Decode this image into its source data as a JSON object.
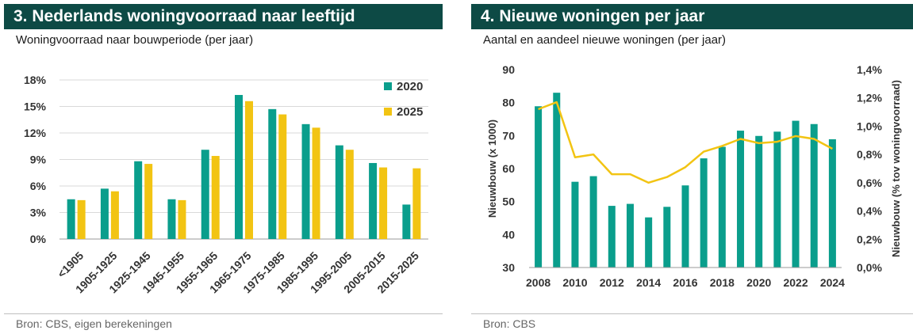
{
  "colors": {
    "header_bg": "#0d4a45",
    "teal": "#0a9e8c",
    "yellow": "#f2c413"
  },
  "left": {
    "header": "3.  Nederlands woningvoorraad naar leeftijd",
    "subtitle": "Woningvoorraad naar bouwperiode (per jaar)",
    "source": "Bron: CBS, eigen berekeningen"
  },
  "right": {
    "header": "4. Nieuwe woningen per jaar",
    "subtitle": "Aantal en aandeel nieuwe woningen (per jaar)",
    "source": "Bron: CBS"
  },
  "chart_data": [
    {
      "type": "bar",
      "categories": [
        "<1905",
        "1905-1925",
        "1925-1945",
        "1945-1955",
        "1955-1965",
        "1965-1975",
        "1975-1985",
        "1985-1995",
        "1995-2005",
        "2005-2015",
        "2015-2025"
      ],
      "series": [
        {
          "name": "2020",
          "color": "#0a9e8c",
          "values": [
            4.5,
            5.7,
            8.8,
            4.5,
            10.1,
            16.3,
            14.7,
            13.0,
            10.6,
            8.6,
            3.9
          ]
        },
        {
          "name": "2025",
          "color": "#f2c413",
          "values": [
            4.4,
            5.4,
            8.5,
            4.4,
            9.4,
            15.6,
            14.1,
            12.6,
            10.1,
            8.1,
            8.0
          ]
        }
      ],
      "yticks": [
        "0%",
        "3%",
        "6%",
        "9%",
        "12%",
        "15%",
        "18%"
      ],
      "ylim": [
        0,
        18
      ],
      "legend_position": "top-right",
      "grid": true
    },
    {
      "type": "bar",
      "x": [
        2008,
        2009,
        2010,
        2011,
        2012,
        2013,
        2014,
        2015,
        2016,
        2017,
        2018,
        2019,
        2020,
        2021,
        2022,
        2023,
        2024
      ],
      "xticks": [
        "2008",
        "2010",
        "2012",
        "2014",
        "2016",
        "2018",
        "2020",
        "2022",
        "2024"
      ],
      "series": [
        {
          "type": "bar",
          "axis": "left",
          "color": "#0a9e8c",
          "values": [
            78.9,
            83.0,
            56.0,
            57.7,
            48.7,
            49.3,
            45.2,
            48.4,
            54.9,
            63.1,
            66.6,
            71.5,
            69.9,
            71.2,
            74.5,
            73.5,
            68.9
          ]
        },
        {
          "type": "line",
          "axis": "right",
          "color": "#f2c413",
          "values": [
            1.12,
            1.17,
            0.78,
            0.8,
            0.66,
            0.66,
            0.6,
            0.64,
            0.71,
            0.82,
            0.86,
            0.91,
            0.88,
            0.89,
            0.93,
            0.91,
            0.84
          ]
        }
      ],
      "y_left": {
        "label": "Nieuwbouw (x 1000)",
        "ticks": [
          "30",
          "40",
          "50",
          "60",
          "70",
          "80",
          "90"
        ],
        "lim": [
          30,
          90
        ]
      },
      "y_right": {
        "label": "Nieuwbouw (% tov woningvoorraad)",
        "ticks": [
          "0,0%",
          "0,2%",
          "0,4%",
          "0,6%",
          "0,8%",
          "1,0%",
          "1,2%",
          "1,4%"
        ],
        "lim": [
          0,
          1.4
        ]
      },
      "grid": false
    }
  ]
}
